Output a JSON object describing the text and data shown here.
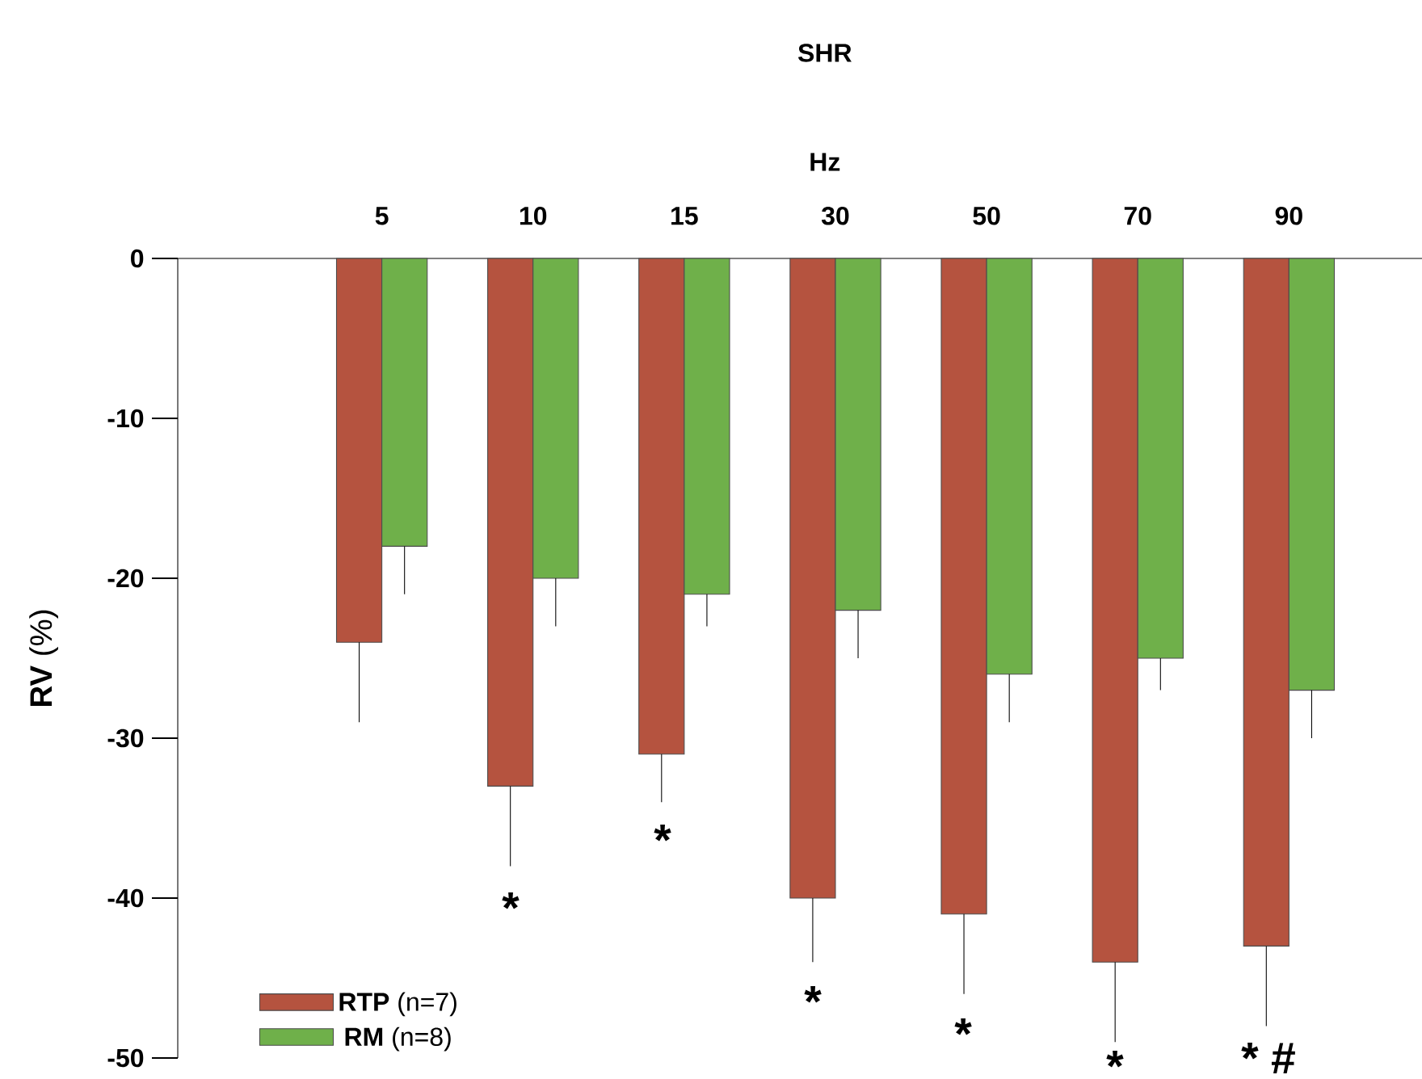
{
  "chart_data": {
    "type": "bar",
    "title": "SHR",
    "xlabel": "Hz",
    "ylabel": "**RV** (%)",
    "categories": [
      "5",
      "10",
      "15",
      "30",
      "50",
      "70",
      "90"
    ],
    "series": [
      {
        "name": "**RTP** (n=7)",
        "color": "#b5533f",
        "values": [
          -24,
          -33,
          -31,
          -40,
          -41,
          -44,
          -43
        ],
        "errors": [
          [
            -29,
            -24
          ],
          [
            -38,
            -33
          ],
          [
            -34,
            -31
          ],
          [
            -44,
            -40
          ],
          [
            -46,
            -41
          ],
          [
            -49,
            -44
          ],
          [
            -48,
            -43
          ]
        ]
      },
      {
        "name": "**RM** (n=8)",
        "color": "#6fb04a",
        "values": [
          -18,
          -20,
          -21,
          -22,
          -26,
          -25,
          -27
        ],
        "errors": [
          [
            -21,
            -18
          ],
          [
            -23,
            -20
          ],
          [
            -23,
            -21
          ],
          [
            -25,
            -22
          ],
          [
            -29,
            -26
          ],
          [
            -27,
            -25
          ],
          [
            -30,
            -27
          ]
        ]
      }
    ],
    "ylim": [
      -50,
      0
    ],
    "yticks": [
      -50,
      -40,
      -30,
      -20,
      -10,
      0
    ],
    "annotations": [
      "*",
      "*",
      "*",
      "*",
      "*",
      "* #"
    ],
    "grid": false,
    "legend": "bottom left"
  }
}
